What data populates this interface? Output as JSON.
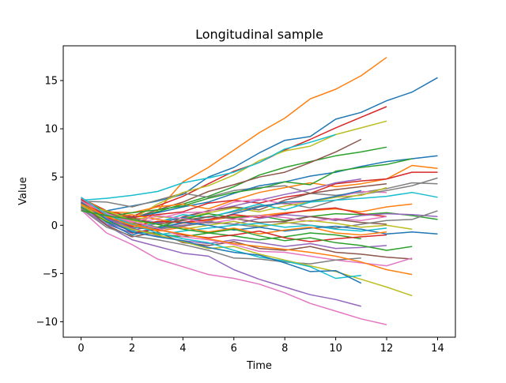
{
  "chart_data": {
    "type": "line",
    "title": "Longitudinal sample",
    "xlabel": "Time",
    "ylabel": "Value",
    "xlim": [
      -0.7,
      14.7
    ],
    "ylim": [
      -11.6,
      18.6
    ],
    "xticks": [
      0,
      2,
      4,
      6,
      8,
      10,
      12,
      14
    ],
    "yticks": [
      -10,
      -5,
      0,
      5,
      10,
      15
    ],
    "grid": false,
    "legend": "none",
    "colors": [
      "#1f77b4",
      "#ff7f0e",
      "#2ca02c",
      "#d62728",
      "#9467bd",
      "#8c564b",
      "#e377c2",
      "#7f7f7f",
      "#bcbd22",
      "#17becf"
    ],
    "series": [
      {
        "values": [
          2.2,
          1.5,
          2.0,
          2.5,
          3.2,
          5.0,
          6.0,
          7.5,
          8.8,
          9.2,
          11.0,
          11.7,
          12.9,
          13.8,
          15.3
        ]
      },
      {
        "values": [
          2.5,
          0.8,
          -0.5,
          1.5,
          4.5,
          6.0,
          7.8,
          9.6,
          11.1,
          13.1,
          14.1,
          15.5,
          17.4
        ]
      },
      {
        "values": [
          2.0,
          0.5,
          0.8,
          1.4,
          2.2,
          3.0,
          4.0,
          5.2,
          6.0,
          6.6,
          7.2,
          7.6,
          8.1
        ]
      },
      {
        "values": [
          2.8,
          1.5,
          0.9,
          2.0,
          3.0,
          4.3,
          5.6,
          6.5,
          7.8,
          8.9,
          10.1,
          11.2,
          12.3
        ]
      },
      {
        "values": [
          1.8,
          0.0,
          -1.5,
          -2.2,
          -2.9,
          -3.2,
          -4.6,
          -5.6,
          -6.4,
          -7.2,
          -7.7,
          -8.4
        ]
      },
      {
        "values": [
          2.3,
          1.0,
          0.7,
          1.6,
          2.4,
          3.5,
          4.2,
          5.0,
          5.5,
          6.5,
          7.6,
          8.9
        ]
      },
      {
        "values": [
          1.6,
          -0.8,
          -2.0,
          -3.5,
          -4.3,
          -5.1,
          -5.5,
          -6.1,
          -7.0,
          -8.1,
          -8.9,
          -9.7,
          -10.3
        ]
      },
      {
        "values": [
          2.5,
          2.4,
          1.9,
          2.6,
          3.3,
          2.9,
          3.6,
          3.9,
          4.1,
          3.3,
          3.1,
          3.4,
          3.8,
          4.4,
          4.3
        ]
      },
      {
        "values": [
          2.6,
          1.1,
          0.6,
          2.2,
          3.4,
          4.1,
          5.2,
          6.7,
          7.7,
          8.2,
          9.4,
          10.1,
          10.8
        ]
      },
      {
        "values": [
          2.6,
          2.8,
          3.1,
          3.5,
          4.4,
          4.9,
          5.5,
          6.5,
          7.9,
          8.6,
          9.4
        ]
      },
      {
        "values": [
          1.9,
          1.2,
          0.8,
          1.3,
          1.9,
          2.4,
          3.3,
          4.1,
          4.5,
          5.1,
          5.5,
          6.1,
          6.6,
          6.9,
          7.2
        ]
      },
      {
        "values": [
          2.8,
          1.4,
          1.3,
          1.9,
          2.2,
          1.7,
          2.6,
          3.4,
          3.9,
          4.4,
          4.0,
          4.3,
          4.8,
          6.2,
          5.9
        ]
      },
      {
        "values": [
          2.1,
          0.9,
          1.3,
          1.6,
          2.0,
          2.8,
          3.4,
          3.8,
          4.5,
          4.2,
          5.6,
          6.0,
          6.3,
          6.9
        ]
      },
      {
        "values": [
          2.7,
          0.5,
          0.8,
          1.1,
          1.4,
          2.3,
          2.6,
          2.3,
          2.9,
          3.3,
          4.3,
          4.6,
          4.8,
          5.5,
          5.5
        ]
      },
      {
        "values": [
          2.3,
          0.3,
          -0.6,
          0.2,
          0.8,
          1.5,
          2.0,
          2.6,
          3.2,
          3.7,
          4.4,
          4.8
        ]
      },
      {
        "values": [
          2.0,
          0.6,
          -0.2,
          -0.5,
          0.9,
          1.5,
          1.9,
          1.6,
          2.6,
          3.3,
          3.7,
          4.0,
          4.3
        ]
      },
      {
        "values": [
          2.4,
          1.3,
          0.1,
          0.7,
          1.3,
          1.4,
          2.4,
          2.7,
          2.2,
          2.5,
          2.9,
          3.5,
          3.4
        ]
      },
      {
        "values": [
          1.7,
          0.7,
          0.2,
          -0.3,
          0.2,
          0.9,
          1.4,
          2.0,
          2.3,
          1.8,
          2.6,
          3.2,
          3.6,
          4.1,
          4.9
        ]
      },
      {
        "values": [
          2.2,
          1.0,
          0.6,
          0.9,
          0.7,
          1.3,
          1.8,
          1.4,
          2.0,
          2.4,
          2.9,
          3.1,
          3.9
        ]
      },
      {
        "values": [
          2.5,
          0.9,
          -0.4,
          0.3,
          1.1,
          0.8,
          1.5,
          2.2,
          1.6,
          2.4,
          2.6,
          2.8,
          3.0,
          3.4,
          2.9
        ]
      },
      {
        "values": [
          1.9,
          0.4,
          0.5,
          0.3,
          0.8,
          0.4,
          1.2,
          1.9,
          2.4,
          2.5,
          3.0,
          3.6
        ]
      },
      {
        "values": [
          2.1,
          0.8,
          1.1,
          0.6,
          0.2,
          0.5,
          0.9,
          1.0,
          1.3,
          1.5,
          1.7,
          1.4,
          1.9,
          2.2
        ]
      },
      {
        "values": [
          2.6,
          1.4,
          0.3,
          -0.2,
          0.6,
          1.2,
          0.8,
          1.0,
          0.5,
          0.9,
          1.2,
          1.1,
          1.3,
          1.0,
          0.6
        ]
      },
      {
        "values": [
          2.4,
          0.7,
          -0.1,
          0.4,
          0.3,
          0.6,
          1.1,
          0.8,
          1.2,
          1.6,
          1.8,
          1.2,
          0.9
        ]
      },
      {
        "values": [
          2.0,
          0.1,
          -0.8,
          -0.3,
          0.0,
          0.4,
          0.1,
          0.7,
          1.1,
          0.9,
          0.5,
          1.0,
          1.2,
          1.1,
          0.9
        ]
      },
      {
        "values": [
          2.3,
          1.2,
          0.8,
          0.1,
          0.5,
          0.9,
          0.7,
          0.3,
          0.4,
          0.9,
          0.6,
          0.3,
          0.1
        ]
      },
      {
        "values": [
          2.8,
          1.1,
          0.3,
          1.0,
          0.7,
          0.2,
          0.6,
          1.0,
          0.8,
          0.4,
          0.7,
          0.5,
          0.9
        ]
      },
      {
        "values": [
          1.8,
          0.6,
          0.0,
          -0.4,
          -0.1,
          0.3,
          0.1,
          -0.2,
          0.3,
          0.0,
          -0.3,
          0.1,
          0.5,
          0.6,
          1.5
        ]
      },
      {
        "values": [
          2.1,
          1.5,
          0.5,
          0.1,
          -0.4,
          0.0,
          0.4,
          -0.1,
          0.2,
          0.5,
          0.2,
          -0.2,
          0.0,
          -0.4
        ]
      },
      {
        "values": [
          2.6,
          0.8,
          -0.6,
          -1.0,
          -0.6,
          -0.3,
          0.0,
          0.2,
          -0.2,
          0.0,
          -0.4,
          -0.6,
          -0.3
        ]
      },
      {
        "values": [
          2.2,
          0.3,
          -1.0,
          -0.3,
          0.3,
          0.0,
          -0.5,
          -0.2,
          -0.6,
          -0.3,
          -0.1,
          -0.4,
          -0.9,
          -0.7,
          -0.9
        ]
      },
      {
        "values": [
          2.4,
          1.0,
          0.2,
          -0.6,
          -0.2,
          -0.7,
          -0.3,
          -0.9,
          -0.5,
          -0.2,
          -0.8,
          -1.0,
          -0.7
        ]
      },
      {
        "values": [
          1.9,
          0.4,
          -0.4,
          -0.9,
          -1.2,
          -0.8,
          -1.1,
          -1.5,
          -1.2,
          -0.8,
          -1.0,
          -1.4
        ]
      },
      {
        "values": [
          2.7,
          0.9,
          -0.8,
          -0.4,
          -1.0,
          -1.3,
          -1.0,
          -0.6,
          -1.3,
          -1.7,
          -1.4,
          -1.2,
          -1.0
        ]
      },
      {
        "values": [
          2.0,
          0.7,
          -0.3,
          -1.1,
          -1.6,
          -1.9,
          -1.5,
          -1.8,
          -2.2,
          -1.9,
          -2.4,
          -2.3,
          -2.1
        ]
      },
      {
        "values": [
          2.3,
          0.0,
          -1.2,
          -0.7,
          -1.8,
          -2.1,
          -1.7,
          -2.4,
          -2.6,
          -2.2,
          -2.8,
          -3.0,
          -3.3,
          -3.5
        ]
      },
      {
        "values": [
          2.5,
          1.2,
          0.4,
          -0.3,
          -1.2,
          -1.5,
          -2.0,
          -2.7,
          -2.8,
          -3.2,
          -3.6,
          -3.9,
          -4.2,
          -3.4
        ]
      },
      {
        "values": [
          1.7,
          -0.2,
          -1.1,
          -1.5,
          -2.0,
          -2.6,
          -3.4,
          -3.5,
          -3.8,
          -4.0,
          -3.6,
          -3.4
        ]
      },
      {
        "values": [
          2.1,
          0.5,
          -0.4,
          -1.0,
          -1.7,
          -2.4,
          -2.2,
          -3.0,
          -3.6,
          -4.2,
          -4.8,
          -5.6,
          -6.4,
          -7.3
        ]
      },
      {
        "values": [
          2.9,
          1.1,
          0.1,
          -0.8,
          -1.4,
          -1.8,
          -2.6,
          -3.3,
          -3.7,
          -4.3,
          -5.5,
          -5.2
        ]
      },
      {
        "values": [
          2.4,
          0.6,
          -0.7,
          -1.2,
          -1.6,
          -2.3,
          -2.8,
          -3.1,
          -3.9,
          -4.8,
          -4.7,
          -6.0
        ]
      },
      {
        "values": [
          2.2,
          0.9,
          0.0,
          -0.5,
          -0.9,
          -1.4,
          -1.9,
          -2.2,
          -2.5,
          -2.8,
          -3.2,
          -3.8,
          -4.6,
          -5.1
        ]
      },
      {
        "values": [
          1.5,
          1.0,
          0.6,
          0.1,
          -0.4,
          -0.8,
          -0.4,
          -1.1,
          -1.6,
          -1.3,
          -1.8,
          -2.1,
          -2.6,
          -2.2
        ]
      }
    ]
  }
}
